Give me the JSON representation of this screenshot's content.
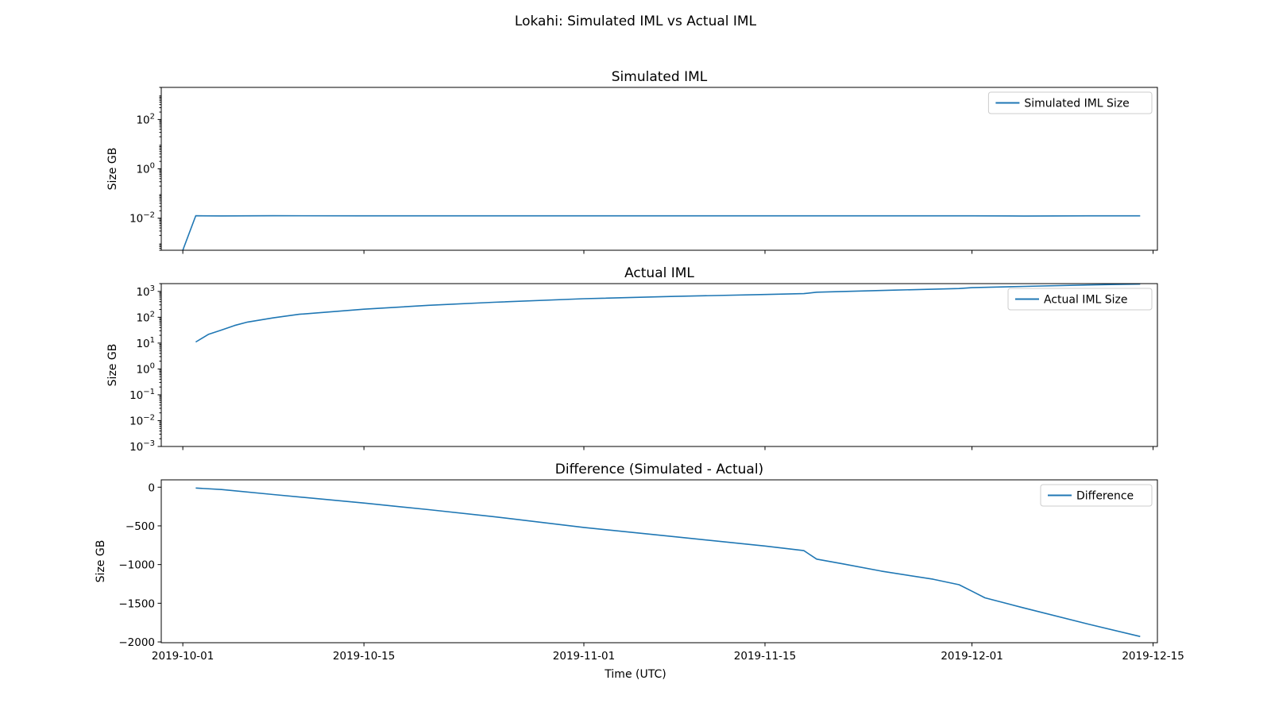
{
  "chart_data": {
    "title": "Lokahi: Simulated IML vs Actual IML",
    "xlabel": "Time (UTC)",
    "x_ticks": [
      "2019-10-01",
      "2019-10-15",
      "2019-11-01",
      "2019-11-15",
      "2019-12-01",
      "2019-12-15"
    ],
    "xlim": [
      "2019-09-29T08:00",
      "2019-12-15T08:00"
    ],
    "grid": false,
    "colors": {
      "line": "#1f77b4"
    },
    "charts": [
      {
        "type": "line",
        "title": "Simulated IML",
        "ylabel": "Size GB",
        "yscale": "log",
        "ylim": [
          0.0005,
          2000
        ],
        "y_ticks": [
          {
            "base": "10",
            "exp": "2",
            "value": 100
          },
          {
            "base": "10",
            "exp": "0",
            "value": 1
          },
          {
            "base": "10",
            "exp": "−2",
            "value": 0.01
          }
        ],
        "legend": "top-right",
        "series": [
          {
            "name": "Simulated IML Size",
            "points": [
              [
                "2019-10-01",
                0.0005
              ],
              [
                "2019-10-02",
                0.0125
              ],
              [
                "2019-10-04",
                0.0123
              ],
              [
                "2019-10-08",
                0.0125
              ],
              [
                "2019-10-15",
                0.0124
              ],
              [
                "2019-10-25",
                0.0124
              ],
              [
                "2019-11-01",
                0.0124
              ],
              [
                "2019-11-10",
                0.0124
              ],
              [
                "2019-11-20",
                0.0124
              ],
              [
                "2019-12-01",
                0.0124
              ],
              [
                "2019-12-05",
                0.0122
              ],
              [
                "2019-12-10",
                0.0124
              ],
              [
                "2019-12-14",
                0.0124
              ]
            ]
          }
        ]
      },
      {
        "type": "line",
        "title": "Actual IML",
        "ylabel": "Size GB",
        "yscale": "log",
        "ylim": [
          0.001,
          2000
        ],
        "y_ticks": [
          {
            "base": "10",
            "exp": "3",
            "value": 1000
          },
          {
            "base": "10",
            "exp": "2",
            "value": 100
          },
          {
            "base": "10",
            "exp": "1",
            "value": 10
          },
          {
            "base": "10",
            "exp": "0",
            "value": 1
          },
          {
            "base": "10",
            "exp": "−1",
            "value": 0.1
          },
          {
            "base": "10",
            "exp": "−2",
            "value": 0.01
          },
          {
            "base": "10",
            "exp": "−3",
            "value": 0.001
          }
        ],
        "legend": "top-right",
        "series": [
          {
            "name": "Actual IML Size",
            "points": [
              [
                "2019-10-02",
                11
              ],
              [
                "2019-10-03",
                22
              ],
              [
                "2019-10-04",
                32
              ],
              [
                "2019-10-05",
                48
              ],
              [
                "2019-10-06",
                65
              ],
              [
                "2019-10-08",
                95
              ],
              [
                "2019-10-10",
                130
              ],
              [
                "2019-10-15",
                205
              ],
              [
                "2019-10-20",
                290
              ],
              [
                "2019-10-25",
                380
              ],
              [
                "2019-11-01",
                520
              ],
              [
                "2019-11-08",
                640
              ],
              [
                "2019-11-15",
                760
              ],
              [
                "2019-11-18",
                820
              ],
              [
                "2019-11-19",
                930
              ],
              [
                "2019-11-25",
                1120
              ],
              [
                "2019-11-30",
                1290
              ],
              [
                "2019-12-01",
                1390
              ],
              [
                "2019-12-05",
                1560
              ],
              [
                "2019-12-10",
                1770
              ],
              [
                "2019-12-14",
                1920
              ]
            ]
          }
        ]
      },
      {
        "type": "line",
        "title": "Difference (Simulated - Actual)",
        "ylabel": "Size GB",
        "yscale": "linear",
        "ylim": [
          -2010,
          95
        ],
        "y_ticks": [
          {
            "label": "0",
            "value": 0
          },
          {
            "label": "−500",
            "value": -500
          },
          {
            "label": "−1000",
            "value": -1000
          },
          {
            "label": "−1500",
            "value": -1500
          },
          {
            "label": "−2000",
            "value": -2000
          }
        ],
        "legend": "top-right",
        "series": [
          {
            "name": "Difference",
            "points": [
              [
                "2019-10-02",
                -11
              ],
              [
                "2019-10-04",
                -30
              ],
              [
                "2019-10-08",
                -95
              ],
              [
                "2019-10-15",
                -205
              ],
              [
                "2019-10-20",
                -290
              ],
              [
                "2019-10-25",
                -380
              ],
              [
                "2019-11-01",
                -520
              ],
              [
                "2019-11-08",
                -640
              ],
              [
                "2019-11-15",
                -760
              ],
              [
                "2019-11-18",
                -820
              ],
              [
                "2019-11-19",
                -930
              ],
              [
                "2019-11-21",
                -990
              ],
              [
                "2019-11-24",
                -1085
              ],
              [
                "2019-11-28",
                -1190
              ],
              [
                "2019-11-30",
                -1260
              ],
              [
                "2019-12-01",
                -1345
              ],
              [
                "2019-12-02",
                -1430
              ],
              [
                "2019-12-05",
                -1560
              ],
              [
                "2019-12-10",
                -1770
              ],
              [
                "2019-12-14",
                -1930
              ]
            ]
          }
        ]
      }
    ]
  }
}
